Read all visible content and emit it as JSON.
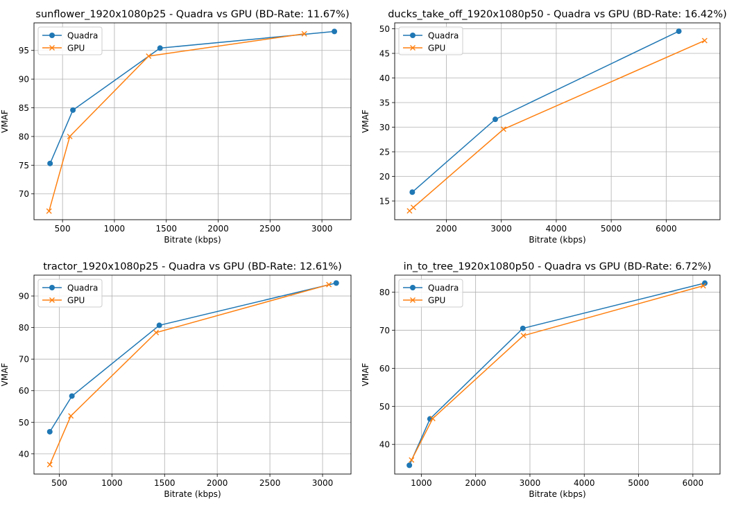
{
  "colors": {
    "quadra": "#1f77b4",
    "gpu": "#ff7f0e",
    "grid": "#b0b0b0"
  },
  "chart_data": [
    {
      "type": "line",
      "title": "sunflower_1920x1080p25 - Quadra vs GPU (BD-Rate: 11.67%)",
      "xlabel": "Bitrate (kbps)",
      "ylabel": "VMAF",
      "xlim": [
        225,
        3280
      ],
      "ylim": [
        65.5,
        99.8
      ],
      "xticks": [
        500,
        1000,
        1500,
        2000,
        2500,
        3000
      ],
      "yticks": [
        70,
        75,
        80,
        85,
        90,
        95
      ],
      "grid": true,
      "legend": "upper-left",
      "series": [
        {
          "name": "Quadra",
          "marker": "circle",
          "x": [
            380,
            600,
            1440,
            3120
          ],
          "y": [
            75.3,
            84.6,
            95.4,
            98.3
          ]
        },
        {
          "name": "GPU",
          "marker": "x",
          "x": [
            370,
            570,
            1330,
            2830
          ],
          "y": [
            67.0,
            80.0,
            94.0,
            97.9
          ]
        }
      ]
    },
    {
      "type": "line",
      "title": "ducks_take_off_1920x1080p50 - Quadra vs GPU (BD-Rate: 16.42%)",
      "xlabel": "Bitrate (kbps)",
      "ylabel": "VMAF",
      "xlim": [
        1060,
        6980
      ],
      "ylim": [
        11.2,
        51.2
      ],
      "xticks": [
        2000,
        3000,
        4000,
        5000,
        6000
      ],
      "yticks": [
        15,
        20,
        25,
        30,
        35,
        40,
        45,
        50
      ],
      "grid": true,
      "legend": "upper-left",
      "series": [
        {
          "name": "Quadra",
          "marker": "circle",
          "x": [
            1380,
            2890,
            6230
          ],
          "y": [
            16.8,
            31.6,
            49.5
          ]
        },
        {
          "name": "GPU",
          "marker": "x",
          "x": [
            1330,
            1400,
            3040,
            6700
          ],
          "y": [
            13.0,
            13.7,
            29.6,
            47.6
          ]
        }
      ]
    },
    {
      "type": "line",
      "title": "tractor_1920x1080p25 - Quadra vs GPU (BD-Rate: 12.61%)",
      "xlabel": "Bitrate (kbps)",
      "ylabel": "VMAF",
      "xlim": [
        260,
        3270
      ],
      "ylim": [
        33.6,
        96.6
      ],
      "xticks": [
        500,
        1000,
        1500,
        2000,
        2500,
        3000
      ],
      "yticks": [
        40,
        50,
        60,
        70,
        80,
        90
      ],
      "grid": true,
      "legend": "upper-left",
      "series": [
        {
          "name": "Quadra",
          "marker": "circle",
          "x": [
            410,
            620,
            1450,
            3130
          ],
          "y": [
            47.0,
            58.3,
            80.7,
            94.1
          ]
        },
        {
          "name": "GPU",
          "marker": "x",
          "x": [
            410,
            610,
            1420,
            3060
          ],
          "y": [
            36.6,
            52.0,
            78.4,
            93.6
          ]
        }
      ]
    },
    {
      "type": "line",
      "title": "in_to_tree_1920x1080p50 - Quadra vs GPU (BD-Rate: 6.72%)",
      "xlabel": "Bitrate (kbps)",
      "ylabel": "VMAF",
      "xlim": [
        510,
        6500
      ],
      "ylim": [
        32.2,
        84.5
      ],
      "xticks": [
        1000,
        2000,
        3000,
        4000,
        5000,
        6000
      ],
      "yticks": [
        40,
        50,
        60,
        70,
        80
      ],
      "grid": true,
      "legend": "upper-left",
      "series": [
        {
          "name": "Quadra",
          "marker": "circle",
          "x": [
            780,
            1160,
            2870,
            6220
          ],
          "y": [
            34.5,
            46.7,
            70.5,
            82.4
          ]
        },
        {
          "name": "GPU",
          "marker": "x",
          "x": [
            820,
            1210,
            2880,
            6190
          ],
          "y": [
            35.9,
            46.8,
            68.6,
            81.7
          ]
        }
      ]
    }
  ]
}
